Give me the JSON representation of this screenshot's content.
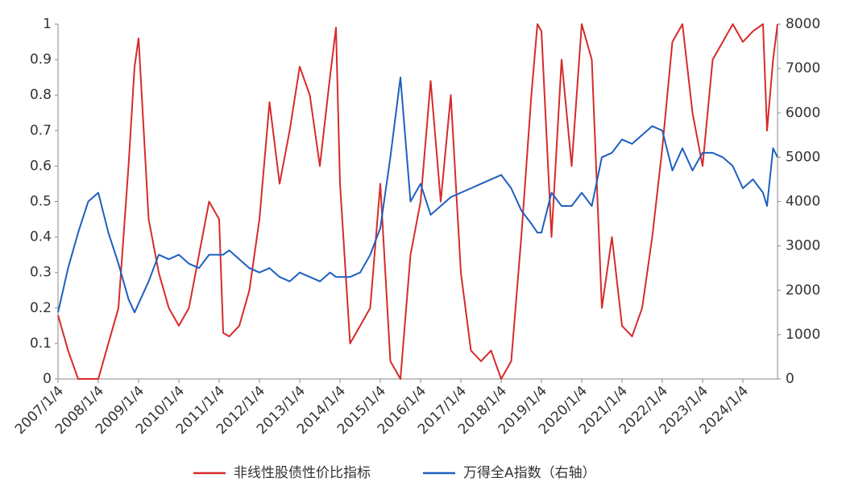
{
  "chart_data": {
    "type": "line",
    "x": [
      2007.0,
      2007.25,
      2007.5,
      2007.75,
      2008.0,
      2008.25,
      2008.5,
      2008.75,
      2008.9,
      2009.0,
      2009.25,
      2009.5,
      2009.75,
      2010.0,
      2010.25,
      2010.5,
      2010.75,
      2011.0,
      2011.1,
      2011.25,
      2011.5,
      2011.75,
      2012.0,
      2012.25,
      2012.5,
      2012.75,
      2013.0,
      2013.25,
      2013.5,
      2013.75,
      2013.9,
      2014.0,
      2014.25,
      2014.5,
      2014.75,
      2015.0,
      2015.25,
      2015.5,
      2015.75,
      2016.0,
      2016.25,
      2016.5,
      2016.75,
      2017.0,
      2017.25,
      2017.5,
      2017.75,
      2018.0,
      2018.25,
      2018.5,
      2018.75,
      2018.9,
      2019.0,
      2019.25,
      2019.5,
      2019.75,
      2020.0,
      2020.25,
      2020.5,
      2020.75,
      2021.0,
      2021.25,
      2021.5,
      2021.75,
      2022.0,
      2022.25,
      2022.5,
      2022.75,
      2023.0,
      2023.25,
      2023.5,
      2023.75,
      2024.0,
      2024.25,
      2024.5,
      2024.6,
      2024.75,
      2024.86
    ],
    "series": [
      {
        "name": "非线性股债性价比指标",
        "color": "#d62b2b",
        "values": [
          0.18,
          0.08,
          0.0,
          0.0,
          0.0,
          0.1,
          0.2,
          0.6,
          0.88,
          0.96,
          0.45,
          0.3,
          0.2,
          0.15,
          0.2,
          0.35,
          0.5,
          0.45,
          0.13,
          0.12,
          0.15,
          0.25,
          0.45,
          0.78,
          0.55,
          0.7,
          0.88,
          0.8,
          0.6,
          0.85,
          0.99,
          0.55,
          0.1,
          0.15,
          0.2,
          0.55,
          0.05,
          0.0,
          0.35,
          0.5,
          0.84,
          0.5,
          0.8,
          0.3,
          0.08,
          0.05,
          0.08,
          0.0,
          0.05,
          0.4,
          0.8,
          1.0,
          0.98,
          0.4,
          0.9,
          0.6,
          1.0,
          0.9,
          0.2,
          0.4,
          0.15,
          0.12,
          0.2,
          0.4,
          0.65,
          0.95,
          1.0,
          0.75,
          0.6,
          0.9,
          0.95,
          1.0,
          0.95,
          0.98,
          1.0,
          0.7,
          0.9,
          1.0
        ]
      },
      {
        "name": "万得全A指数（右轴）",
        "color": "#1f5fbf",
        "axis": "y2",
        "values": [
          1500,
          2500,
          3300,
          4000,
          4200,
          3300,
          2600,
          1800,
          1500,
          1700,
          2200,
          2800,
          2700,
          2800,
          2600,
          2500,
          2800,
          2800,
          2800,
          2900,
          2700,
          2500,
          2400,
          2500,
          2300,
          2200,
          2400,
          2300,
          2200,
          2400,
          2300,
          2300,
          2300,
          2400,
          2800,
          3400,
          5000,
          6800,
          4000,
          4400,
          3700,
          3900,
          4100,
          4200,
          4300,
          4400,
          4500,
          4600,
          4300,
          3800,
          3500,
          3300,
          3300,
          4200,
          3900,
          3900,
          4200,
          3900,
          5000,
          5100,
          5400,
          5300,
          5500,
          5700,
          5600,
          4700,
          5200,
          4700,
          5100,
          5100,
          5000,
          4800,
          4300,
          4500,
          4200,
          3900,
          5200,
          5000
        ]
      }
    ],
    "xlim": [
      2007.0,
      2024.86
    ],
    "xticks": [
      {
        "value": 2007.0,
        "label": "2007/1/4"
      },
      {
        "value": 2008.0,
        "label": "2008/1/4"
      },
      {
        "value": 2009.0,
        "label": "2009/1/4"
      },
      {
        "value": 2010.0,
        "label": "2010/1/4"
      },
      {
        "value": 2011.0,
        "label": "2011/1/4"
      },
      {
        "value": 2012.0,
        "label": "2012/1/4"
      },
      {
        "value": 2013.0,
        "label": "2013/1/4"
      },
      {
        "value": 2014.0,
        "label": "2014/1/4"
      },
      {
        "value": 2015.0,
        "label": "2015/1/4"
      },
      {
        "value": 2016.0,
        "label": "2016/1/4"
      },
      {
        "value": 2017.0,
        "label": "2017/1/4"
      },
      {
        "value": 2018.0,
        "label": "2018/1/4"
      },
      {
        "value": 2019.0,
        "label": "2019/1/4"
      },
      {
        "value": 2020.0,
        "label": "2020/1/4"
      },
      {
        "value": 2021.0,
        "label": "2021/1/4"
      },
      {
        "value": 2022.0,
        "label": "2022/1/4"
      },
      {
        "value": 2023.0,
        "label": "2023/1/4"
      },
      {
        "value": 2024.0,
        "label": "2024/1/4"
      }
    ],
    "ylim": [
      0,
      1
    ],
    "yticks": [
      0,
      0.1,
      0.2,
      0.3,
      0.4,
      0.5,
      0.6,
      0.7,
      0.8,
      0.9,
      1
    ],
    "y2lim": [
      0,
      8000
    ],
    "y2ticks": [
      0,
      1000,
      2000,
      3000,
      4000,
      5000,
      6000,
      7000,
      8000
    ],
    "legend": "bottom"
  }
}
